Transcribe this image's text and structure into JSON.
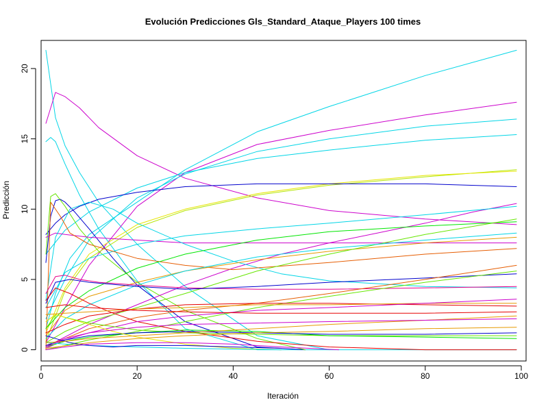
{
  "chart_data": {
    "type": "line",
    "title": "Evolución Predicciones Gls_Standard_Ataque_Players 100 times",
    "xlabel": "Iteración",
    "ylabel": "Predicción",
    "xlim": [
      0,
      101
    ],
    "ylim": [
      -0.8,
      22
    ],
    "xticks": [
      0,
      20,
      40,
      60,
      80,
      100
    ],
    "yticks": [
      0,
      5,
      10,
      15,
      20
    ],
    "grid": false,
    "legend": "none",
    "series": [
      {
        "color": "#00d5e6",
        "x": [
          1,
          3,
          5,
          8,
          12,
          20,
          30,
          45,
          60,
          80,
          99
        ],
        "y": [
          21.3,
          16.5,
          14.5,
          12.6,
          10.5,
          7.5,
          4.5,
          1.0,
          0,
          0,
          0
        ]
      },
      {
        "color": "#00d5e6",
        "x": [
          1,
          3,
          6,
          10,
          20,
          30,
          45,
          60,
          80,
          99
        ],
        "y": [
          1.5,
          4.0,
          6.5,
          8.2,
          10.5,
          12.8,
          15.5,
          17.3,
          19.5,
          21.3
        ]
      },
      {
        "color": "#cc00cc",
        "x": [
          1,
          3,
          5,
          8,
          12,
          20,
          30,
          45,
          60,
          80,
          99
        ],
        "y": [
          16.1,
          18.3,
          18.0,
          17.2,
          15.8,
          13.8,
          12.2,
          10.8,
          9.9,
          9.3,
          8.9
        ]
      },
      {
        "color": "#cc00cc",
        "x": [
          1,
          5,
          10,
          20,
          30,
          45,
          60,
          80,
          99
        ],
        "y": [
          0.5,
          3.0,
          6.0,
          10.2,
          12.6,
          14.6,
          15.6,
          16.7,
          17.6
        ]
      },
      {
        "color": "#00d5e6",
        "x": [
          1,
          2,
          3,
          5,
          8,
          12,
          20,
          30,
          45,
          55,
          60
        ],
        "y": [
          14.8,
          15.1,
          14.8,
          13.2,
          11.0,
          8.6,
          4.9,
          1.5,
          0,
          0,
          0
        ]
      },
      {
        "color": "#00d5e6",
        "x": [
          1,
          5,
          10,
          20,
          30,
          45,
          60,
          80,
          99
        ],
        "y": [
          2.2,
          5.0,
          7.8,
          10.8,
          12.5,
          14.1,
          15.0,
          15.9,
          16.4
        ]
      },
      {
        "color": "#00d5e6",
        "x": [
          1,
          5,
          10,
          20,
          30,
          45,
          60,
          80,
          99
        ],
        "y": [
          6.8,
          8.5,
          9.8,
          11.5,
          12.6,
          13.6,
          14.2,
          14.9,
          15.3
        ]
      },
      {
        "color": "#b4e600",
        "x": [
          1,
          5,
          10,
          20,
          30,
          45,
          60,
          80,
          99
        ],
        "y": [
          0.6,
          4.2,
          6.5,
          8.7,
          9.9,
          11.0,
          11.7,
          12.3,
          12.8
        ]
      },
      {
        "color": "#e6e600",
        "x": [
          1,
          5,
          10,
          20,
          30,
          45,
          60,
          80,
          99
        ],
        "y": [
          1.2,
          4.4,
          6.8,
          8.9,
          10.0,
          11.1,
          11.8,
          12.4,
          12.7
        ]
      },
      {
        "color": "#0000cc",
        "x": [
          1,
          3,
          5,
          8,
          12,
          20,
          30,
          45,
          60,
          80,
          99
        ],
        "y": [
          8.2,
          9.0,
          9.6,
          10.2,
          10.7,
          11.2,
          11.6,
          11.8,
          11.8,
          11.8,
          11.6
        ]
      },
      {
        "color": "#0000cc",
        "x": [
          1,
          2,
          3,
          4,
          5,
          7,
          10,
          15,
          20,
          30,
          45,
          55
        ],
        "y": [
          6.2,
          9.5,
          10.6,
          10.7,
          10.5,
          9.8,
          8.6,
          6.5,
          4.6,
          2.0,
          0.2,
          0
        ]
      },
      {
        "color": "#66e600",
        "x": [
          1,
          2,
          3,
          5,
          8,
          12,
          20,
          30,
          45,
          55
        ],
        "y": [
          6.8,
          10.9,
          11.1,
          10.2,
          8.6,
          7.0,
          4.8,
          2.8,
          0.8,
          0
        ]
      },
      {
        "color": "#cc00cc",
        "x": [
          1,
          10,
          20,
          30,
          40,
          50,
          60,
          70,
          80,
          90,
          99
        ],
        "y": [
          0.2,
          1.8,
          3.2,
          4.6,
          5.8,
          6.8,
          7.6,
          8.3,
          9.0,
          9.8,
          10.4
        ]
      },
      {
        "color": "#cc00cc",
        "x": [
          1,
          3,
          5,
          10,
          20,
          30,
          45,
          60,
          80,
          99
        ],
        "y": [
          8.0,
          8.3,
          8.2,
          8.0,
          7.8,
          7.6,
          7.6,
          7.6,
          7.6,
          7.6
        ]
      },
      {
        "color": "#00d5e6",
        "x": [
          1,
          5,
          10,
          20,
          30,
          45,
          60,
          80,
          99
        ],
        "y": [
          3.0,
          5.5,
          6.5,
          7.5,
          8.1,
          8.6,
          9.0,
          9.6,
          10.2
        ]
      },
      {
        "color": "#00d5e6",
        "x": [
          1,
          3,
          6,
          10,
          15,
          20,
          30,
          40,
          50,
          60,
          80,
          99
        ],
        "y": [
          3.5,
          8.0,
          10.0,
          10.5,
          10.0,
          9.0,
          7.5,
          6.3,
          5.4,
          4.9,
          4.5,
          4.4
        ]
      },
      {
        "color": "#e65c00",
        "x": [
          1,
          2,
          4,
          6,
          10,
          20,
          30,
          40,
          60,
          80,
          99
        ],
        "y": [
          0,
          10.5,
          9.5,
          8.3,
          7.5,
          6.5,
          6.0,
          5.7,
          6.2,
          6.8,
          7.2
        ]
      },
      {
        "color": "#e69900",
        "x": [
          1,
          5,
          10,
          20,
          30,
          45,
          60,
          80,
          99
        ],
        "y": [
          1.0,
          2.8,
          3.8,
          4.8,
          5.6,
          6.4,
          7.0,
          7.6,
          8.0
        ]
      },
      {
        "color": "#00e600",
        "x": [
          1,
          5,
          10,
          20,
          30,
          45,
          60,
          80,
          99
        ],
        "y": [
          1.5,
          3.0,
          4.2,
          5.8,
          6.8,
          7.8,
          8.4,
          8.8,
          9.1
        ]
      },
      {
        "color": "#66e600",
        "x": [
          1,
          5,
          10,
          20,
          30,
          45,
          60,
          80,
          99
        ],
        "y": [
          0.5,
          1.3,
          2.0,
          3.0,
          4.0,
          5.6,
          6.8,
          8.2,
          9.3
        ]
      },
      {
        "color": "#00d5e6",
        "x": [
          1,
          5,
          10,
          20,
          30,
          45,
          60,
          80,
          99
        ],
        "y": [
          0.8,
          2.2,
          3.2,
          4.6,
          5.6,
          6.6,
          7.2,
          7.8,
          8.3
        ]
      },
      {
        "color": "#e6008a",
        "x": [
          1,
          3,
          5,
          8,
          12,
          20,
          30,
          45,
          60,
          80,
          99
        ],
        "y": [
          4.0,
          5.2,
          5.3,
          5.0,
          4.8,
          4.6,
          4.4,
          4.3,
          4.3,
          4.4,
          4.5
        ]
      },
      {
        "color": "#0000cc",
        "x": [
          1,
          3,
          6,
          10,
          20,
          30,
          45,
          60,
          80,
          99
        ],
        "y": [
          3.3,
          4.8,
          5.0,
          4.8,
          4.5,
          4.3,
          4.5,
          4.8,
          5.1,
          5.4
        ]
      },
      {
        "color": "#66e600",
        "x": [
          1,
          5,
          10,
          20,
          30,
          45,
          60,
          80,
          99
        ],
        "y": [
          0,
          0.3,
          0.7,
          1.3,
          2.0,
          3.0,
          3.8,
          4.8,
          5.6
        ]
      },
      {
        "color": "#e65c00",
        "x": [
          1,
          5,
          10,
          20,
          30,
          45,
          60,
          80,
          99
        ],
        "y": [
          0.3,
          0.8,
          1.5,
          2.3,
          2.8,
          3.3,
          4.0,
          5.0,
          6.0
        ]
      },
      {
        "color": "#e60000",
        "x": [
          1,
          5,
          10,
          20,
          30,
          45,
          60,
          80,
          99
        ],
        "y": [
          1.2,
          1.8,
          2.4,
          2.9,
          3.2,
          3.3,
          3.3,
          3.2,
          3.1
        ]
      },
      {
        "color": "#e60000",
        "x": [
          1,
          3,
          6,
          10,
          15,
          20,
          30,
          45,
          60,
          80,
          99
        ],
        "y": [
          3.5,
          4.4,
          4.0,
          3.3,
          2.6,
          2.0,
          1.3,
          0.6,
          0.2,
          0,
          0
        ]
      },
      {
        "color": "#e69900",
        "x": [
          1,
          5,
          10,
          20,
          30,
          45,
          60,
          80,
          99
        ],
        "y": [
          2.5,
          2.6,
          2.7,
          2.9,
          3.0,
          3.2,
          3.2,
          3.3,
          3.3
        ]
      },
      {
        "color": "#cc00cc",
        "x": [
          1,
          5,
          10,
          20,
          30,
          45,
          60,
          80,
          99
        ],
        "y": [
          0.1,
          0.7,
          1.2,
          2.0,
          2.4,
          2.8,
          3.0,
          3.3,
          3.6
        ]
      },
      {
        "color": "#66e600",
        "x": [
          1,
          3,
          5,
          10,
          20,
          30,
          45,
          60,
          80,
          99
        ],
        "y": [
          1.5,
          2.5,
          2.3,
          1.9,
          1.4,
          1.2,
          1.1,
          1.0,
          1.0,
          1.0
        ]
      },
      {
        "color": "#00e600",
        "x": [
          1,
          5,
          10,
          20,
          30,
          45,
          60,
          80,
          99
        ],
        "y": [
          0.2,
          0.6,
          0.9,
          1.2,
          1.4,
          1.3,
          1.0,
          0.9,
          0.8
        ]
      },
      {
        "color": "#0000cc",
        "x": [
          1,
          5,
          10,
          20,
          30,
          45,
          60,
          80,
          99
        ],
        "y": [
          0.3,
          0.7,
          1.0,
          1.2,
          1.3,
          1.2,
          1.1,
          1.1,
          1.2
        ]
      },
      {
        "color": "#e6e600",
        "x": [
          1,
          3,
          6,
          10,
          15,
          20,
          30,
          40,
          50
        ],
        "y": [
          2.0,
          2.5,
          2.2,
          1.8,
          1.3,
          0.9,
          0.4,
          0.1,
          0
        ]
      },
      {
        "color": "#00d5e6",
        "x": [
          1,
          5,
          10,
          20,
          30,
          40,
          50
        ],
        "y": [
          0.5,
          0.4,
          0.3,
          0.2,
          0.1,
          0.05,
          0
        ]
      },
      {
        "color": "#0000cc",
        "x": [
          1,
          3,
          6,
          10,
          15,
          20,
          30,
          40,
          50
        ],
        "y": [
          1.0,
          0.8,
          0.5,
          0.3,
          0.2,
          0.3,
          0.3,
          0.2,
          0.1
        ]
      },
      {
        "color": "#cc00cc",
        "x": [
          1,
          5,
          10,
          20,
          30,
          40,
          50,
          62
        ],
        "y": [
          0,
          0.2,
          0.4,
          0.5,
          0.5,
          0.4,
          0.2,
          0
        ]
      },
      {
        "color": "#e69900",
        "x": [
          1,
          5,
          10,
          20,
          30,
          45,
          60,
          80,
          99
        ],
        "y": [
          0.5,
          0.6,
          0.8,
          1.0,
          1.2,
          1.5,
          1.8,
          2.1,
          2.4
        ]
      },
      {
        "color": "#e60000",
        "x": [
          1,
          5,
          10,
          20,
          30,
          45,
          60,
          80,
          99
        ],
        "y": [
          3.0,
          3.2,
          3.0,
          2.8,
          2.7,
          2.6,
          2.6,
          2.6,
          2.7
        ]
      },
      {
        "color": "#cc00cc",
        "x": [
          1,
          5,
          10,
          20,
          30,
          45,
          60,
          80,
          99
        ],
        "y": [
          0.2,
          0.8,
          1.2,
          1.6,
          1.8,
          1.9,
          2.0,
          2.1,
          2.2
        ]
      },
      {
        "color": "#e69900",
        "x": [
          1,
          10,
          20,
          30,
          45,
          60,
          80,
          99
        ],
        "y": [
          0.1,
          0.5,
          0.8,
          1.0,
          1.2,
          1.3,
          1.5,
          1.6
        ]
      }
    ]
  }
}
